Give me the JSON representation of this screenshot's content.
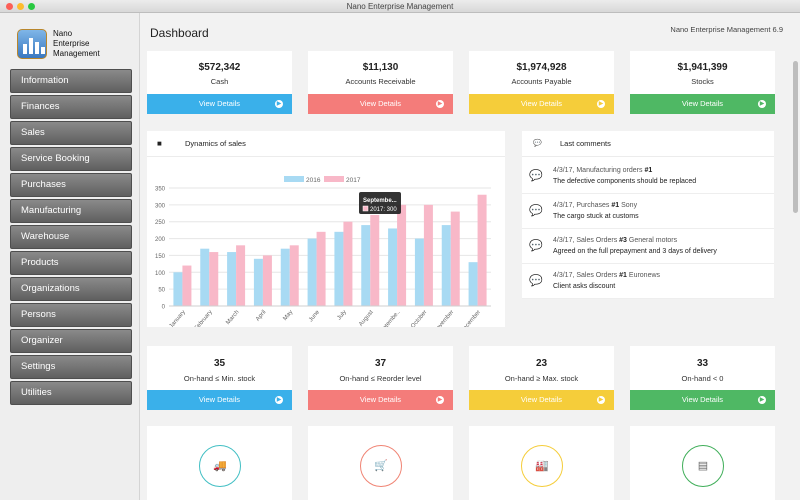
{
  "window": {
    "title": "Nano Enterprise Management"
  },
  "app": {
    "logo_line1": "Nano",
    "logo_line2": "Enterprise",
    "logo_line3": "Management"
  },
  "sidebar": {
    "items": [
      "Information",
      "Finances",
      "Sales",
      "Service Booking",
      "Purchases",
      "Manufacturing",
      "Warehouse",
      "Products",
      "Organizations",
      "Persons",
      "Organizer",
      "Settings",
      "Utilities"
    ]
  },
  "header": {
    "title": "Dashboard",
    "version": "Nano Enterprise Management 6.9"
  },
  "colors": {
    "blue": "#3ab0ea",
    "red": "#f47c7a",
    "yellow": "#f5cd3a",
    "green": "#4fb864",
    "series2016": "#a8daf3",
    "series2017": "#f8b8c8"
  },
  "stats": [
    {
      "value": "$572,342",
      "label": "Cash",
      "button": "View Details",
      "color": "blue"
    },
    {
      "value": "$11,130",
      "label": "Accounts Receivable",
      "button": "View Details",
      "color": "red"
    },
    {
      "value": "$1,974,928",
      "label": "Accounts Payable",
      "button": "View Details",
      "color": "yellow"
    },
    {
      "value": "$1,941,399",
      "label": "Stocks",
      "button": "View Details",
      "color": "green"
    }
  ],
  "stock": [
    {
      "value": "35",
      "label": "On-hand ≤ Min. stock",
      "button": "View Details",
      "color": "blue"
    },
    {
      "value": "37",
      "label": "On-hand ≤ Reorder level",
      "button": "View Details",
      "color": "red"
    },
    {
      "value": "23",
      "label": "On-hand ≥ Max. stock",
      "button": "View Details",
      "color": "yellow"
    },
    {
      "value": "33",
      "label": "On-hand < 0",
      "button": "View Details",
      "color": "green"
    }
  ],
  "sales_panel": {
    "title": "Dynamics of sales",
    "icon": "truck-icon"
  },
  "tooltip": {
    "title": "Septembe...",
    "text": "2017: 300"
  },
  "chart_data": {
    "type": "bar",
    "categories": [
      "January",
      "February",
      "March",
      "April",
      "May",
      "June",
      "July",
      "August",
      "Septembe..",
      "October",
      "November",
      "December"
    ],
    "series": [
      {
        "name": "2016",
        "values": [
          100,
          170,
          160,
          140,
          170,
          200,
          220,
          240,
          230,
          200,
          240,
          130
        ]
      },
      {
        "name": "2017",
        "values": [
          120,
          160,
          180,
          150,
          180,
          220,
          250,
          270,
          300,
          300,
          280,
          330
        ]
      }
    ],
    "ylim": [
      0,
      350
    ],
    "yticks": [
      "0",
      "50",
      "100",
      "150",
      "200",
      "250",
      "300",
      "350"
    ],
    "grid": true,
    "legend": "top"
  },
  "comments_panel": {
    "title": "Last comments",
    "icon": "comment-icon"
  },
  "comments": [
    {
      "prefix": "4/3/17, Manufacturing orders ",
      "num": "#1",
      "suffix": "",
      "text": "The defective components should be replaced"
    },
    {
      "prefix": "4/3/17, Purchases ",
      "num": "#1",
      "suffix": " Sony",
      "text": "The cargo stuck at customs"
    },
    {
      "prefix": "4/3/17, Sales Orders ",
      "num": "#3",
      "suffix": " General motors",
      "text": "Agreed on the full prepayment and 3 days of delivery"
    },
    {
      "prefix": "4/3/17, Sales Orders ",
      "num": "#1",
      "suffix": " Euronews",
      "text": "Client asks discount"
    }
  ],
  "bottom_icons": [
    {
      "icon": "truck-icon",
      "glyph": "🚚",
      "color": "#42bfc4"
    },
    {
      "icon": "cart-icon",
      "glyph": "🛒",
      "color": "#f08474"
    },
    {
      "icon": "factory-icon",
      "glyph": "🏭",
      "color": "#f5cd3a"
    },
    {
      "icon": "server-icon",
      "glyph": "▤",
      "color": "#3fae59"
    }
  ]
}
